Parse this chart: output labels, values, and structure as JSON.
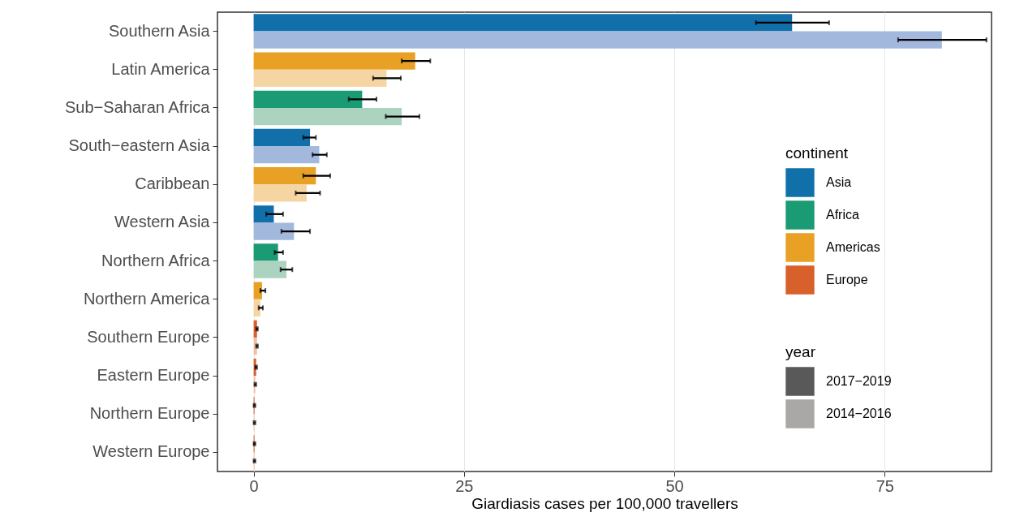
{
  "chart_data": {
    "type": "bar",
    "orientation": "horizontal",
    "xlabel": "Giardiasis cases per 100,000 travellers",
    "categories": [
      "Southern Asia",
      "Latin America",
      "Sub−Saharan Africa",
      "South−eastern Asia",
      "Caribbean",
      "Western Asia",
      "Northern Africa",
      "Northern America",
      "Southern Europe",
      "Eastern Europe",
      "Northern Europe",
      "Western Europe"
    ],
    "series": [
      {
        "name": "2017−2019",
        "color": "#595959",
        "colors": [
          "#1170aa",
          "#e8a124",
          "#1a9b73",
          "#1170aa",
          "#e8a124",
          "#1170aa",
          "#1a9b73",
          "#e8a124",
          "#d8602a",
          "#d8602a",
          "#d8602a",
          "#d8602a"
        ],
        "values": [
          64.0,
          19.2,
          12.9,
          6.7,
          7.4,
          2.4,
          2.9,
          1.0,
          0.4,
          0.3,
          0.1,
          0.1
        ],
        "errors": [
          [
            59.7,
            68.4
          ],
          [
            17.6,
            21.0
          ],
          [
            11.3,
            14.6
          ],
          [
            5.9,
            7.4
          ],
          [
            5.9,
            9.1
          ],
          [
            1.5,
            3.5
          ],
          [
            2.5,
            3.5
          ],
          [
            0.8,
            1.4
          ],
          [
            0.3,
            0.5
          ],
          [
            0.2,
            0.4
          ],
          [
            0.0,
            0.2
          ],
          [
            0.0,
            0.2
          ]
        ]
      },
      {
        "name": "2014−2016",
        "color": "#aaa8a6",
        "colors": [
          "#a3b8dd",
          "#f5d6a3",
          "#abd3c0",
          "#a3b8dd",
          "#f5d6a3",
          "#a3b8dd",
          "#abd3c0",
          "#f5d6a3",
          "#f0c0a4",
          "#f0c0a4",
          "#f0c0a4",
          "#f0c0a4"
        ],
        "values": [
          81.8,
          15.8,
          17.6,
          7.8,
          6.3,
          4.8,
          3.9,
          0.8,
          0.4,
          0.2,
          0.1,
          0.1
        ],
        "errors": [
          [
            76.6,
            87.1
          ],
          [
            14.2,
            17.5
          ],
          [
            15.7,
            19.7
          ],
          [
            7.0,
            8.7
          ],
          [
            5.0,
            7.9
          ],
          [
            3.3,
            6.7
          ],
          [
            3.2,
            4.6
          ],
          [
            0.6,
            1.1
          ],
          [
            0.3,
            0.5
          ],
          [
            0.1,
            0.3
          ],
          [
            0.0,
            0.2
          ],
          [
            0.0,
            0.2
          ]
        ]
      }
    ],
    "annotations": [
      "continent",
      "Asia",
      "Africa",
      "Americas",
      "Europe"
    ],
    "legend_title": "year",
    "legend": "right",
    "xlim": [
      -4.3,
      87.7
    ],
    "xticks": [
      0,
      25,
      50,
      75
    ],
    "grid": true
  }
}
